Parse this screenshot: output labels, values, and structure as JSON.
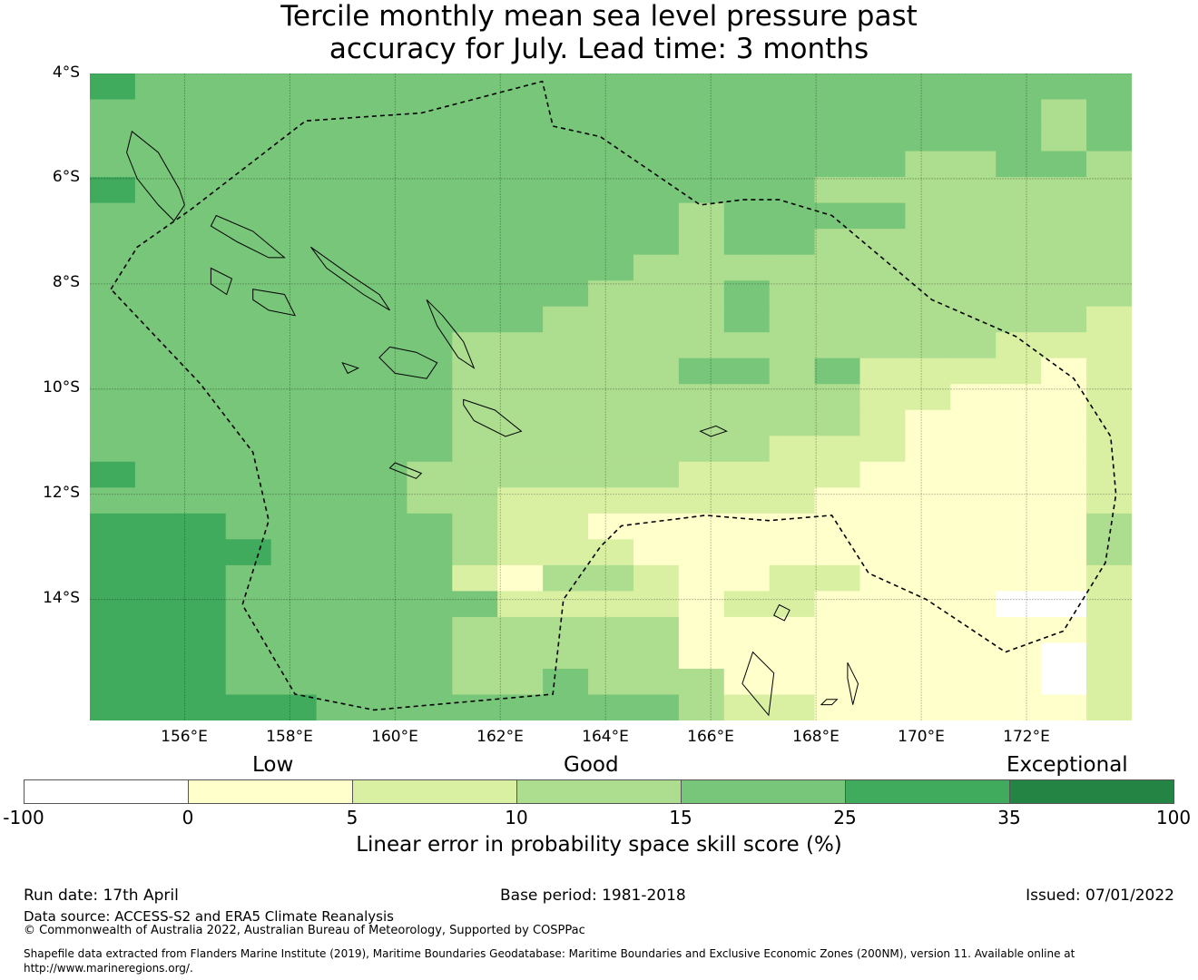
{
  "title": {
    "line1": "Tercile monthly mean sea level pressure past",
    "line2": "accuracy for July. Lead time: 3 months"
  },
  "map": {
    "lon_range": [
      154.2,
      174.0
    ],
    "lat_range": [
      -16.3,
      -4.0
    ],
    "cell_size_deg": 0.83,
    "grid_lons": [
      156,
      158,
      160,
      162,
      164,
      166,
      168,
      170,
      172
    ],
    "grid_lats": [
      -4,
      -6,
      -8,
      -10,
      -12,
      -14
    ],
    "lat_labels": [
      "4°S",
      "6°S",
      "8°S",
      "10°S",
      "12°S",
      "14°S"
    ],
    "lon_labels": [
      "156°E",
      "158°E",
      "160°E",
      "162°E",
      "164°E",
      "166°E",
      "168°E",
      "170°E",
      "172°E"
    ],
    "category_rows_legend": "0=-100..0, 1=0..5, 2=5..10, 3=10..15, 4=15..25, 5=25..35, 6=35..100",
    "cells": [
      "54444444444444444444444",
      "44444444444444444444434",
      "44444444444444444444434",
      "44444444444444444433443",
      "54444444444444443333333",
      "44444444444443444433333",
      "44444444444443443333333",
      "44444444444433333333333",
      "44444444444333433333333",
      "44444444443333433333332",
      "44444444333333333333222",
      "44444444333334434222212",
      "44444444333333333221112",
      "44444444333333333211112",
      "44444444333333322211112",
      "54444443333332222111112",
      "44444443322222221111112",
      "55544444322111111111113",
      "55554444322211111111113",
      "55544444213321122111112",
      "55544444422221221111002",
      "55544444333331111111112",
      "55544444333331111111102",
      "55544444334333111111102",
      "55555444444443221111112"
    ],
    "eez_boundary": [
      [
        154.6,
        -8.1
      ],
      [
        155.1,
        -7.3
      ],
      [
        156.1,
        -6.6
      ],
      [
        158.3,
        -4.9
      ],
      [
        160.5,
        -4.75
      ],
      [
        162.8,
        -4.15
      ],
      [
        163.0,
        -5.0
      ],
      [
        163.9,
        -5.2
      ],
      [
        165.8,
        -6.5
      ],
      [
        166.6,
        -6.4
      ],
      [
        167.3,
        -6.4
      ],
      [
        168.3,
        -6.7
      ],
      [
        170.2,
        -8.3
      ],
      [
        171.8,
        -9.0
      ],
      [
        172.9,
        -9.8
      ],
      [
        173.6,
        -10.9
      ],
      [
        173.7,
        -12.0
      ],
      [
        173.5,
        -13.3
      ],
      [
        172.7,
        -14.6
      ],
      [
        171.6,
        -15.0
      ],
      [
        170.1,
        -14.0
      ],
      [
        169.0,
        -13.5
      ],
      [
        168.3,
        -12.4
      ],
      [
        167.1,
        -12.5
      ],
      [
        165.9,
        -12.4
      ],
      [
        164.3,
        -12.6
      ],
      [
        163.9,
        -13.0
      ],
      [
        163.2,
        -14.0
      ],
      [
        163.0,
        -15.8
      ],
      [
        159.6,
        -16.1
      ],
      [
        158.1,
        -15.8
      ],
      [
        157.1,
        -14.1
      ],
      [
        157.6,
        -12.5
      ],
      [
        157.3,
        -11.2
      ],
      [
        156.3,
        -9.9
      ]
    ],
    "islands": [
      [
        [
          155.0,
          -5.1
        ],
        [
          155.5,
          -5.5
        ],
        [
          155.9,
          -6.2
        ],
        [
          156.0,
          -6.5
        ],
        [
          155.8,
          -6.8
        ],
        [
          155.5,
          -6.5
        ],
        [
          155.1,
          -6.0
        ],
        [
          154.9,
          -5.5
        ]
      ],
      [
        [
          156.6,
          -6.7
        ],
        [
          157.3,
          -7.0
        ],
        [
          157.9,
          -7.5
        ],
        [
          157.6,
          -7.5
        ],
        [
          157.0,
          -7.2
        ],
        [
          156.5,
          -6.9
        ]
      ],
      [
        [
          158.4,
          -7.3
        ],
        [
          159.1,
          -7.8
        ],
        [
          159.7,
          -8.2
        ],
        [
          159.9,
          -8.5
        ],
        [
          159.4,
          -8.2
        ],
        [
          158.7,
          -7.7
        ]
      ],
      [
        [
          159.9,
          -9.2
        ],
        [
          160.4,
          -9.3
        ],
        [
          160.8,
          -9.5
        ],
        [
          160.6,
          -9.8
        ],
        [
          160.0,
          -9.7
        ],
        [
          159.7,
          -9.4
        ]
      ],
      [
        [
          160.6,
          -8.3
        ],
        [
          160.9,
          -8.6
        ],
        [
          161.3,
          -9.1
        ],
        [
          161.5,
          -9.6
        ],
        [
          161.2,
          -9.4
        ],
        [
          160.8,
          -8.8
        ]
      ],
      [
        [
          161.3,
          -10.2
        ],
        [
          161.9,
          -10.4
        ],
        [
          162.4,
          -10.8
        ],
        [
          162.1,
          -10.9
        ],
        [
          161.5,
          -10.6
        ],
        [
          161.3,
          -10.3
        ]
      ],
      [
        [
          157.3,
          -8.1
        ],
        [
          157.9,
          -8.2
        ],
        [
          158.1,
          -8.6
        ],
        [
          157.6,
          -8.5
        ],
        [
          157.3,
          -8.3
        ]
      ],
      [
        [
          156.5,
          -7.7
        ],
        [
          156.9,
          -7.9
        ],
        [
          156.8,
          -8.2
        ],
        [
          156.5,
          -8.0
        ]
      ],
      [
        [
          160.0,
          -11.4
        ],
        [
          160.5,
          -11.6
        ],
        [
          160.4,
          -11.7
        ],
        [
          159.9,
          -11.5
        ]
      ],
      [
        [
          166.8,
          -15.0
        ],
        [
          167.2,
          -15.4
        ],
        [
          167.1,
          -16.2
        ],
        [
          166.6,
          -15.6
        ]
      ],
      [
        [
          168.2,
          -15.9
        ],
        [
          168.4,
          -15.9
        ],
        [
          168.3,
          -16.0
        ],
        [
          168.1,
          -16.0
        ]
      ],
      [
        [
          168.6,
          -15.2
        ],
        [
          168.8,
          -15.6
        ],
        [
          168.7,
          -16.0
        ],
        [
          168.6,
          -15.5
        ]
      ],
      [
        [
          167.3,
          -14.1
        ],
        [
          167.5,
          -14.2
        ],
        [
          167.4,
          -14.4
        ],
        [
          167.2,
          -14.3
        ]
      ],
      [
        [
          166.1,
          -10.7
        ],
        [
          166.3,
          -10.8
        ],
        [
          166.0,
          -10.9
        ],
        [
          165.8,
          -10.8
        ]
      ],
      [
        [
          159.0,
          -9.5
        ],
        [
          159.3,
          -9.6
        ],
        [
          159.1,
          -9.7
        ]
      ]
    ]
  },
  "colorbar": {
    "category_labels": {
      "low": "Low",
      "good": "Good",
      "exceptional": "Exceptional"
    },
    "ticks": [
      "-100",
      "0",
      "5",
      "10",
      "15",
      "25",
      "35",
      "100"
    ],
    "colors": [
      "#ffffff",
      "#ffffcc",
      "#d9f0a3",
      "#addd8e",
      "#78c679",
      "#41ab5d",
      "#238443"
    ],
    "title": "Linear error in probability space skill score (%)"
  },
  "footer": {
    "run_date": "Run date: 17th April",
    "base_period": "Base period: 1981-2018",
    "issued": "Issued: 07/01/2022",
    "data_source": "Data source: ACCESS-S2 and ERA5 Climate Reanalysis",
    "copyright": "© Commonwealth of Australia 2022, Australian Bureau of Meteorology, Supported by COSPPac",
    "shapefile_line1": "Shapefile data extracted from Flanders Marine Institute (2019), Maritime Boundaries Geodatabase: Maritime Boundaries and Exclusive Economic Zones (200NM), version 11. Available online at",
    "shapefile_line2": "http://www.marineregions.org/."
  }
}
